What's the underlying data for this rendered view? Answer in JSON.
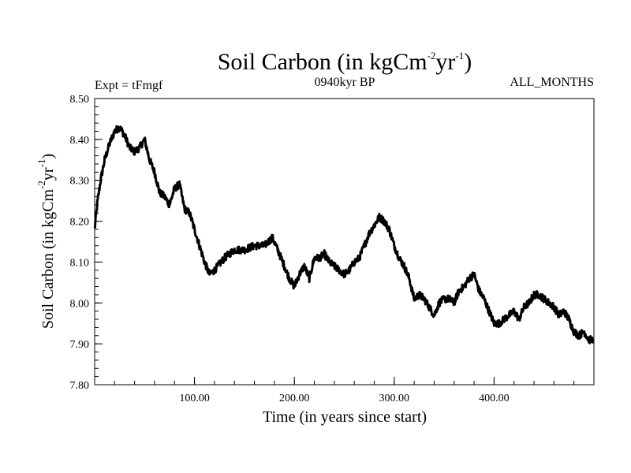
{
  "chart_data": {
    "type": "line",
    "title_main": "Soil Carbon (in kgCm",
    "title_sup1": "-2",
    "title_mid": "yr",
    "title_sup2": "-1",
    "title_end": ")",
    "subtitle_left": "Expt = tFmgf",
    "subtitle_center": "0940kyr BP",
    "subtitle_right": "ALL_MONTHS",
    "xlabel": "Time (in years since start)",
    "ylabel_main": "Soil Carbon (in kgCm",
    "ylabel_sup1": "-2",
    "ylabel_mid": "yr",
    "ylabel_sup2": "-1",
    "ylabel_end": ")",
    "xlim": [
      0,
      500
    ],
    "ylim": [
      7.8,
      8.5
    ],
    "xticks": [
      100,
      200,
      300,
      400
    ],
    "xtick_labels": [
      "100.00",
      "200.00",
      "300.00",
      "400.00"
    ],
    "yticks": [
      7.8,
      7.9,
      8.0,
      8.1,
      8.2,
      8.3,
      8.4,
      8.5
    ],
    "ytick_labels": [
      "7.80",
      "7.90",
      "8.00",
      "8.10",
      "8.20",
      "8.30",
      "8.40",
      "8.50"
    ],
    "line_color": "#000000",
    "series": [
      {
        "name": "Soil Carbon",
        "x": [
          0,
          3,
          6,
          10,
          15,
          20,
          25,
          30,
          35,
          40,
          45,
          50,
          55,
          60,
          65,
          70,
          75,
          80,
          85,
          90,
          95,
          100,
          105,
          110,
          115,
          120,
          130,
          140,
          150,
          160,
          170,
          178,
          185,
          190,
          195,
          200,
          205,
          210,
          215,
          220,
          225,
          230,
          235,
          240,
          245,
          250,
          255,
          260,
          265,
          270,
          275,
          280,
          285,
          290,
          295,
          300,
          305,
          310,
          315,
          320,
          325,
          330,
          335,
          340,
          345,
          350,
          355,
          360,
          365,
          370,
          375,
          380,
          385,
          390,
          395,
          400,
          405,
          410,
          415,
          420,
          425,
          430,
          435,
          440,
          445,
          450,
          455,
          460,
          465,
          470,
          475,
          480,
          485,
          490,
          495,
          499
        ],
        "values": [
          8.18,
          8.25,
          8.3,
          8.35,
          8.39,
          8.42,
          8.43,
          8.41,
          8.38,
          8.37,
          8.38,
          8.4,
          8.35,
          8.32,
          8.27,
          8.26,
          8.24,
          8.28,
          8.29,
          8.23,
          8.22,
          8.18,
          8.14,
          8.1,
          8.07,
          8.08,
          8.11,
          8.13,
          8.13,
          8.14,
          8.14,
          8.16,
          8.12,
          8.09,
          8.06,
          8.04,
          8.07,
          8.09,
          8.06,
          8.11,
          8.11,
          8.12,
          8.1,
          8.09,
          8.08,
          8.07,
          8.08,
          8.1,
          8.11,
          8.14,
          8.17,
          8.19,
          8.21,
          8.2,
          8.18,
          8.14,
          8.11,
          8.09,
          8.06,
          8.01,
          8.02,
          8.01,
          7.99,
          7.97,
          8.0,
          8.01,
          8.01,
          8.0,
          8.03,
          8.04,
          8.06,
          8.07,
          8.03,
          8.01,
          7.98,
          7.95,
          7.95,
          7.96,
          7.97,
          7.98,
          7.96,
          7.99,
          8.0,
          8.02,
          8.02,
          8.01,
          8.0,
          7.99,
          7.97,
          7.98,
          7.96,
          7.93,
          7.92,
          7.93,
          7.91,
          7.91
        ]
      }
    ]
  }
}
